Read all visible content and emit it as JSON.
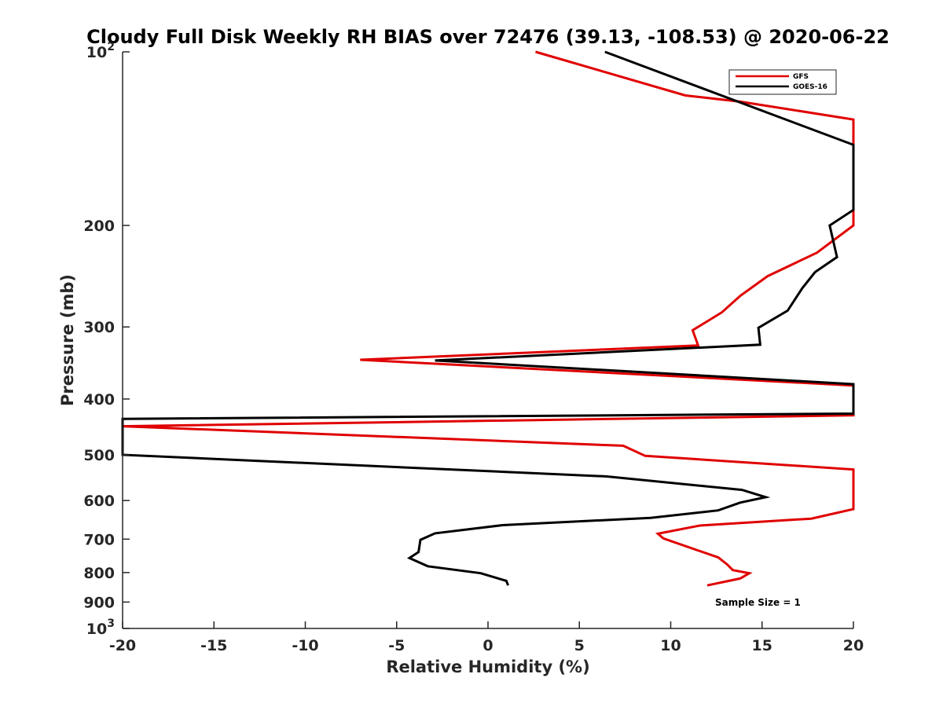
{
  "chart_data": {
    "type": "line",
    "title": "Cloudy Full Disk Weekly RH BIAS over 72476 (39.13, -108.53) @ 2020-06-22",
    "xlabel": "Relative Humidity (%)",
    "ylabel": "Pressure (mb)",
    "xlim": [
      -20,
      20
    ],
    "ylim": [
      100,
      1000
    ],
    "yscale": "log",
    "y_reversed": true,
    "xticks": [
      -20,
      -15,
      -10,
      -5,
      0,
      5,
      10,
      15,
      20
    ],
    "xtick_labels": [
      "-20",
      "-15",
      "-10",
      "-5",
      "0",
      "5",
      "10",
      "15",
      "20"
    ],
    "yticks": [
      200,
      300,
      400,
      500,
      600,
      700,
      800,
      900
    ],
    "ytick_labels": [
      "200",
      "300",
      "400",
      "500",
      "600",
      "700",
      "800",
      "900"
    ],
    "ytick_exp_base": "10",
    "ytick_exp_top": "2",
    "ytick_exp_bottom": "3",
    "grid": false,
    "legend_position": "top-right",
    "series": [
      {
        "name": "GFS",
        "color": "#e00000",
        "points": [
          {
            "x": 2.6,
            "p": 100
          },
          {
            "x": 10.8,
            "p": 119
          },
          {
            "x": 13.8,
            "p": 122
          },
          {
            "x": 20,
            "p": 131
          },
          {
            "x": 20,
            "p": 200
          },
          {
            "x": 18.0,
            "p": 223
          },
          {
            "x": 15.3,
            "p": 245
          },
          {
            "x": 13.8,
            "p": 265
          },
          {
            "x": 12.8,
            "p": 283
          },
          {
            "x": 11.2,
            "p": 304
          },
          {
            "x": 11.5,
            "p": 323
          },
          {
            "x": -7.0,
            "p": 342
          },
          {
            "x": 20,
            "p": 379
          },
          {
            "x": 20,
            "p": 427
          },
          {
            "x": -20,
            "p": 446
          },
          {
            "x": 7.4,
            "p": 482
          },
          {
            "x": 8.6,
            "p": 502
          },
          {
            "x": 20,
            "p": 530
          },
          {
            "x": 20,
            "p": 621
          },
          {
            "x": 17.7,
            "p": 645
          },
          {
            "x": 11.6,
            "p": 663
          },
          {
            "x": 9.3,
            "p": 685
          },
          {
            "x": 9.6,
            "p": 698
          },
          {
            "x": 12.6,
            "p": 753
          },
          {
            "x": 13.1,
            "p": 775
          },
          {
            "x": 13.4,
            "p": 792
          },
          {
            "x": 14.3,
            "p": 802
          },
          {
            "x": 13.8,
            "p": 819
          },
          {
            "x": 12.0,
            "p": 842
          }
        ]
      },
      {
        "name": "GOES-16",
        "color": "#000000",
        "points": [
          {
            "x": 6.4,
            "p": 100
          },
          {
            "x": 20,
            "p": 145
          },
          {
            "x": 20,
            "p": 188
          },
          {
            "x": 18.7,
            "p": 200
          },
          {
            "x": 19.1,
            "p": 227
          },
          {
            "x": 17.9,
            "p": 241
          },
          {
            "x": 17.2,
            "p": 257
          },
          {
            "x": 16.4,
            "p": 281
          },
          {
            "x": 14.8,
            "p": 301
          },
          {
            "x": 14.9,
            "p": 322
          },
          {
            "x": -2.9,
            "p": 343
          },
          {
            "x": 20,
            "p": 377
          },
          {
            "x": 20,
            "p": 424
          },
          {
            "x": -20,
            "p": 433
          },
          {
            "x": -20,
            "p": 500
          },
          {
            "x": 6.5,
            "p": 545
          },
          {
            "x": 13.9,
            "p": 575
          },
          {
            "x": 15.2,
            "p": 592
          },
          {
            "x": 13.8,
            "p": 605
          },
          {
            "x": 12.6,
            "p": 624
          },
          {
            "x": 8.9,
            "p": 643
          },
          {
            "x": 0.8,
            "p": 662
          },
          {
            "x": -2.9,
            "p": 684
          },
          {
            "x": -3.7,
            "p": 702
          },
          {
            "x": -3.8,
            "p": 737
          },
          {
            "x": -4.3,
            "p": 755
          },
          {
            "x": -3.3,
            "p": 780
          },
          {
            "x": -0.4,
            "p": 802
          },
          {
            "x": 1.0,
            "p": 827
          },
          {
            "x": 1.1,
            "p": 842
          }
        ]
      }
    ],
    "annotation": "Sample Size = 1"
  }
}
